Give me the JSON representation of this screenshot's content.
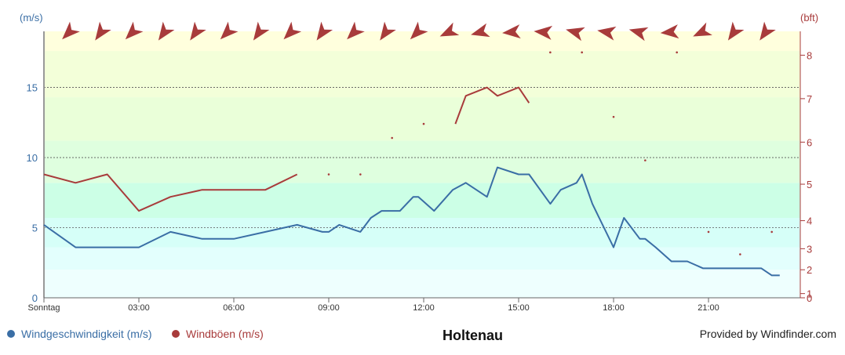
{
  "chart_data": {
    "type": "line",
    "title": "Holtenau",
    "y_left_unit": "(m/s)",
    "y_right_unit": "(bft)",
    "ylim": [
      0,
      19
    ],
    "xlim": [
      0,
      23.9
    ],
    "x_ticks": [
      {
        "x": 0,
        "label": "Sonntag"
      },
      {
        "x": 3,
        "label": "03:00"
      },
      {
        "x": 6,
        "label": "06:00"
      },
      {
        "x": 9,
        "label": "09:00"
      },
      {
        "x": 12,
        "label": "12:00"
      },
      {
        "x": 15,
        "label": "15:00"
      },
      {
        "x": 18,
        "label": "18:00"
      },
      {
        "x": 21,
        "label": "21:00"
      }
    ],
    "y_left_ticks": [
      0,
      5,
      10,
      15
    ],
    "y_right_ticks": [
      {
        "label": "0",
        "ms": 0
      },
      {
        "label": "1",
        "ms": 0.3
      },
      {
        "label": "2",
        "ms": 2
      },
      {
        "label": "3",
        "ms": 3.5
      },
      {
        "label": "4",
        "ms": 5.5
      },
      {
        "label": "5",
        "ms": 8.1
      },
      {
        "label": "6",
        "ms": 11.1
      },
      {
        "label": "7",
        "ms": 14.2
      },
      {
        "label": "8",
        "ms": 17.3
      }
    ],
    "beaufort_bands": [
      {
        "from": 0,
        "to": 2.0,
        "color": "#eefffe"
      },
      {
        "from": 2.0,
        "to": 3.6,
        "color": "#e3fffd"
      },
      {
        "from": 3.6,
        "to": 5.7,
        "color": "#d6fff8"
      },
      {
        "from": 5.7,
        "to": 8.2,
        "color": "#ccffe6"
      },
      {
        "from": 8.2,
        "to": 11.2,
        "color": "#dfffdf"
      },
      {
        "from": 11.2,
        "to": 14.3,
        "color": "#eaffd9"
      },
      {
        "from": 14.3,
        "to": 17.6,
        "color": "#f3ffd9"
      },
      {
        "from": 17.6,
        "to": 19,
        "color": "#ffffdd"
      }
    ],
    "series": [
      {
        "name": "Windgeschwindigkeit (m/s)",
        "color": "#3a6ea5",
        "segments": [
          [
            [
              0,
              5.2
            ],
            [
              1,
              3.6
            ],
            [
              2,
              3.6
            ],
            [
              3,
              3.6
            ],
            [
              4,
              4.7
            ],
            [
              5,
              4.2
            ],
            [
              6,
              4.2
            ],
            [
              7,
              4.7
            ],
            [
              8,
              5.2
            ],
            [
              8.8,
              4.7
            ],
            [
              9,
              4.7
            ],
            [
              9.33,
              5.2
            ],
            [
              10,
              4.7
            ],
            [
              10.33,
              5.7
            ],
            [
              10.67,
              6.2
            ],
            [
              11.25,
              6.2
            ],
            [
              11.67,
              7.2
            ],
            [
              11.83,
              7.2
            ],
            [
              12.33,
              6.2
            ],
            [
              12.92,
              7.7
            ],
            [
              13.33,
              8.2
            ],
            [
              14,
              7.2
            ],
            [
              14.33,
              9.3
            ],
            [
              15,
              8.8
            ],
            [
              15.33,
              8.8
            ],
            [
              16,
              6.7
            ],
            [
              16.33,
              7.7
            ],
            [
              16.83,
              8.2
            ],
            [
              17,
              8.8
            ],
            [
              17.33,
              6.7
            ],
            [
              18,
              3.6
            ],
            [
              18.33,
              5.7
            ],
            [
              18.83,
              4.2
            ],
            [
              19,
              4.2
            ],
            [
              19.33,
              3.6
            ],
            [
              19.83,
              2.6
            ],
            [
              20.33,
              2.6
            ],
            [
              20.83,
              2.1
            ],
            [
              21.33,
              2.1
            ],
            [
              22,
              2.1
            ],
            [
              22.67,
              2.1
            ],
            [
              23,
              1.6
            ],
            [
              23.25,
              1.6
            ]
          ]
        ]
      },
      {
        "name": "Windböen (m/s)",
        "color": "#a83b3b",
        "segments": [
          [
            [
              0,
              8.8
            ],
            [
              1,
              8.2
            ],
            [
              2,
              8.8
            ],
            [
              3,
              6.2
            ],
            [
              4,
              7.2
            ],
            [
              5,
              7.7
            ],
            [
              6,
              7.7
            ],
            [
              7,
              7.7
            ],
            [
              8,
              8.8
            ]
          ],
          [
            [
              13,
              12.4
            ],
            [
              13.33,
              14.4
            ],
            [
              14,
              15.0
            ],
            [
              14.33,
              14.4
            ],
            [
              15,
              15.0
            ],
            [
              15.33,
              13.9
            ]
          ]
        ],
        "points": [
          [
            9,
            8.8
          ],
          [
            10,
            8.8
          ],
          [
            11,
            11.4
          ],
          [
            12,
            12.4
          ],
          [
            16,
            17.5
          ],
          [
            17,
            17.5
          ],
          [
            18,
            12.9
          ],
          [
            19,
            9.8
          ],
          [
            20,
            17.5
          ],
          [
            21,
            4.7
          ],
          [
            22,
            3.1
          ],
          [
            23,
            4.7
          ]
        ]
      }
    ],
    "wind_direction_arrows_deg": [
      225,
      215,
      225,
      215,
      215,
      225,
      215,
      225,
      215,
      225,
      215,
      225,
      245,
      255,
      265,
      275,
      285,
      280,
      285,
      265,
      245,
      215,
      215
    ]
  },
  "legend": [
    {
      "label": "Windgeschwindigkeit (m/s)",
      "color": "#3a6ea5"
    },
    {
      "label": "Windböen (m/s)",
      "color": "#a83b3b"
    }
  ],
  "credit": "Provided by Windfinder.com"
}
